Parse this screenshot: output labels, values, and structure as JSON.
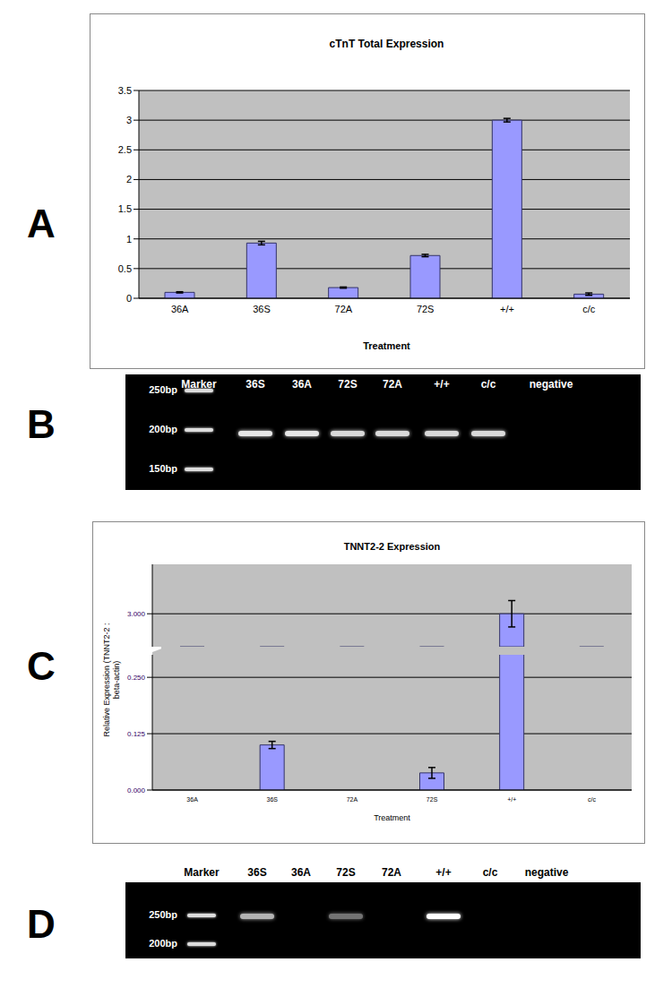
{
  "chart_data": [
    {
      "panel": "A",
      "type": "bar",
      "title": "cTnT Total Expression",
      "x_label": "Treatment",
      "categories": [
        "36A",
        "36S",
        "72A",
        "72S",
        "+/+",
        "c/c"
      ],
      "values": [
        0.1,
        0.93,
        0.18,
        0.72,
        3.0,
        0.07
      ],
      "errors": [
        0.01,
        0.03,
        0.01,
        0.02,
        0.03,
        0.02
      ],
      "color": "#9999ff",
      "ylim": [
        0,
        3.5
      ],
      "yticks": [
        0,
        0.5,
        1,
        1.5,
        2,
        2.5,
        3,
        3.5
      ],
      "grid": true
    },
    {
      "panel": "C",
      "type": "bar",
      "title": "TNNT2-2 Expression",
      "x_label": "Treatment",
      "y_label": "Relative Expression (TNNT2-2 : beta-actin)",
      "categories": [
        "36A",
        "36S",
        "72A",
        "72S",
        "+/+",
        "c/c"
      ],
      "values": [
        0,
        0.1,
        0,
        0.038,
        3.0,
        0
      ],
      "errors": [
        0,
        0.008,
        0,
        0.012,
        0.04,
        0
      ],
      "color": "#9999ff",
      "ylim": [
        0,
        3.15
      ],
      "y_break": [
        0.3,
        2.9
      ],
      "yticks": [
        {
          "value": 0,
          "label": "0.000"
        },
        {
          "value": 0.125,
          "label": "0.125"
        },
        {
          "value": 0.25,
          "label": "0.250"
        },
        {
          "value": 3,
          "label": "3.000"
        }
      ],
      "grid": true
    }
  ],
  "gels": [
    {
      "panel": "B",
      "marker_lane": "Marker",
      "lanes": [
        "36S",
        "36A",
        "72S",
        "72A",
        "+/+",
        "c/c",
        "negative"
      ],
      "marker": [
        {
          "value": 250,
          "label": "250bp"
        },
        {
          "value": 200,
          "label": "200bp"
        },
        {
          "value": 150,
          "label": "150bp"
        }
      ],
      "band_size": 195,
      "band_intensity": [
        0.9,
        0.9,
        0.85,
        0.85,
        0.85,
        0.85,
        0
      ]
    },
    {
      "panel": "D",
      "marker_lane": "Marker",
      "lanes": [
        "36S",
        "36A",
        "72S",
        "72A",
        "+/+",
        "c/c",
        "negative"
      ],
      "marker": [
        {
          "value": 250,
          "label": "250bp"
        },
        {
          "value": 200,
          "label": "200bp"
        }
      ],
      "band_size": 248,
      "band_intensity": [
        0.7,
        0,
        0.45,
        0,
        1,
        0,
        0
      ]
    }
  ]
}
